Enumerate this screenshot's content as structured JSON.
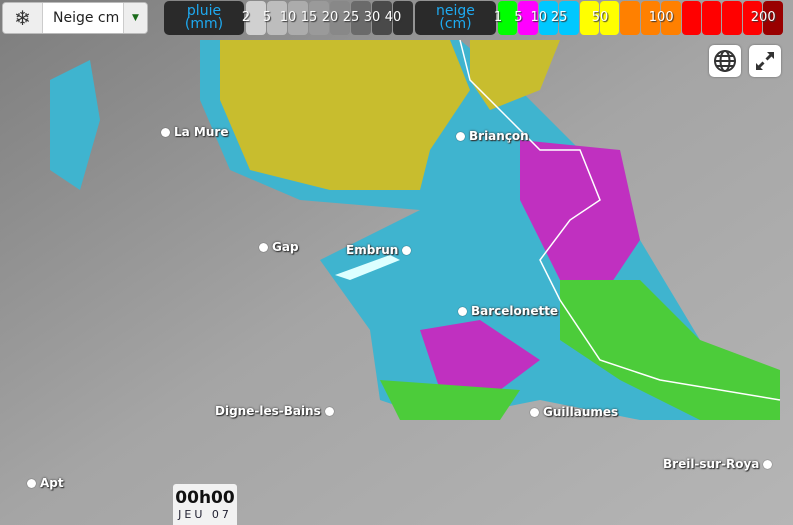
{
  "selector": {
    "icon": "snowflake-icon",
    "value": "Neige cm"
  },
  "legend": {
    "rain": {
      "title_line1": "pluie",
      "title_line2": "(mm)",
      "labels": [
        "2",
        "5",
        "10",
        "15",
        "20",
        "25",
        "30",
        "40"
      ],
      "colors": [
        "#d0d0d0",
        "#bdbdbd",
        "#acacac",
        "#9a9a9a",
        "#888888",
        "#6a6a6a",
        "#4a4a4a",
        "#333333"
      ]
    },
    "snow": {
      "title_line1": "neige",
      "title_line2": "(cm)",
      "labels": [
        "1",
        "5",
        "10",
        "25",
        "50",
        "100",
        "200"
      ],
      "colors": [
        "#00ff00",
        "#ff00ff",
        "#00c8ff",
        "#00c8ff",
        "#ffff00",
        "#ffff00",
        "#ff8000",
        "#ff8000",
        "#ff8000",
        "#ff0000",
        "#ff0000",
        "#ff0000",
        "#ff0000",
        "#990000"
      ]
    }
  },
  "cities": [
    "La Mure",
    "Briançon",
    "Gap",
    "Embrun",
    "Barcelonette",
    "Digne-les-Bains",
    "Guillaumes",
    "Breil-sur-Roya",
    "Apt"
  ],
  "controls": {
    "globe": "globe-icon",
    "fullscreen": "expand-icon"
  },
  "time": {
    "hour": "00h00",
    "day": "JEU 07"
  }
}
